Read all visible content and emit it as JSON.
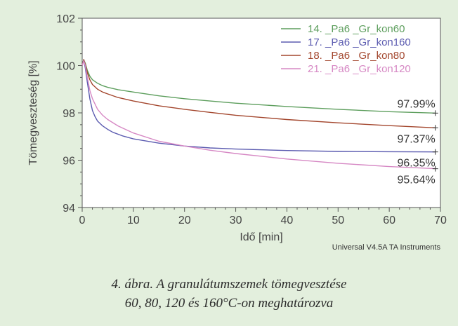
{
  "chart_data": {
    "type": "line",
    "title": "",
    "xlabel": "Idő [min]",
    "ylabel": "Tömegveszteség [%]",
    "xlim": [
      0,
      70
    ],
    "ylim": [
      94,
      102
    ],
    "x_ticks": [
      0,
      10,
      20,
      30,
      40,
      50,
      60,
      70
    ],
    "y_ticks": [
      94,
      96,
      98,
      100,
      102
    ],
    "grid": false,
    "legend_position": "top-right",
    "series": [
      {
        "name": "14. _Pa6 _Gr_kon60",
        "color": "#5d9e5d",
        "x": [
          0,
          0.3,
          0.6,
          1,
          1.5,
          2,
          3,
          4,
          5,
          7,
          10,
          15,
          20,
          25,
          30,
          40,
          50,
          60,
          69
        ],
        "y": [
          100.0,
          100.25,
          100.1,
          99.8,
          99.55,
          99.4,
          99.25,
          99.15,
          99.08,
          98.98,
          98.88,
          98.72,
          98.6,
          98.5,
          98.41,
          98.27,
          98.15,
          98.05,
          97.99
        ]
      },
      {
        "name": "17. _Pa6 _Gr_kon160",
        "color": "#5b5bb0",
        "x": [
          0,
          0.3,
          0.6,
          1,
          1.5,
          2,
          2.5,
          3,
          4,
          5,
          6,
          8,
          10,
          15,
          20,
          25,
          30,
          40,
          50,
          60,
          69
        ],
        "y": [
          100.0,
          100.25,
          99.9,
          99.3,
          98.6,
          98.1,
          97.85,
          97.65,
          97.45,
          97.3,
          97.18,
          97.02,
          96.9,
          96.72,
          96.6,
          96.52,
          96.47,
          96.41,
          96.37,
          96.36,
          96.35
        ]
      },
      {
        "name": "18. _Pa6 _Gr_kon80",
        "color": "#a3462d",
        "x": [
          0,
          0.3,
          0.6,
          1,
          1.5,
          2,
          3,
          4,
          5,
          7,
          10,
          15,
          20,
          25,
          30,
          40,
          50,
          60,
          69
        ],
        "y": [
          100.0,
          100.25,
          100.05,
          99.7,
          99.4,
          99.2,
          99.0,
          98.88,
          98.8,
          98.65,
          98.5,
          98.3,
          98.15,
          98.02,
          97.9,
          97.72,
          97.58,
          97.46,
          97.37
        ]
      },
      {
        "name": "21. _Pa6 _Gr_kon120",
        "color": "#d688c4",
        "x": [
          0,
          0.3,
          0.6,
          1,
          1.5,
          2,
          3,
          4,
          5,
          7,
          10,
          15,
          20,
          25,
          30,
          40,
          50,
          60,
          69
        ],
        "y": [
          100.0,
          100.2,
          100.0,
          99.5,
          98.95,
          98.6,
          98.15,
          97.9,
          97.72,
          97.45,
          97.15,
          96.8,
          96.6,
          96.42,
          96.28,
          96.05,
          95.87,
          95.73,
          95.64
        ]
      }
    ],
    "annotations": [
      {
        "text": "97.99%",
        "x": 69,
        "y": 97.99,
        "placement": "above"
      },
      {
        "text": "97.37%",
        "x": 69,
        "y": 97.37,
        "placement": "below"
      },
      {
        "text": "96.35%",
        "x": 69,
        "y": 96.35,
        "placement": "below"
      },
      {
        "text": "95.64%",
        "x": 69,
        "y": 95.64,
        "placement": "below"
      }
    ],
    "instrument_note": "Universal V4.5A TA Instruments"
  },
  "caption": {
    "line1": "4. ábra. A granulátumszemek tömegvesztése",
    "line2": "60, 80, 120 és 160°C-on meghatározva"
  },
  "colors": {
    "plot_background": "#ffffff",
    "page_background": "#e3efdd",
    "axis": "#555555",
    "text": "#444444"
  }
}
